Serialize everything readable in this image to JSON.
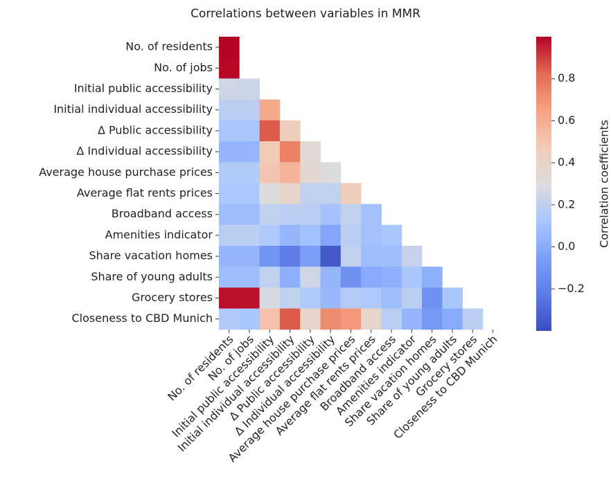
{
  "chart_data": {
    "type": "heatmap",
    "title": "Correlations between variables in MMR",
    "categories": [
      "No. of residents",
      "No. of jobs",
      "Initial public accessibility",
      "Initial individual accessibility",
      "Δ Public accessibility",
      "Δ Individual accessibility",
      "Average house purchase prices",
      "Average flat rents prices",
      "Broadband access",
      "Amenities indicator",
      "Share vacation homes",
      "Share of young adults",
      "Grocery stores",
      "Closeness to CBD Munich"
    ],
    "values": [
      [
        1.0
      ],
      [
        0.99
      ],
      [
        0.25,
        0.24
      ],
      [
        0.18,
        0.18,
        0.62
      ],
      [
        0.12,
        0.12,
        0.85,
        0.45
      ],
      [
        0.05,
        0.05,
        0.47,
        0.75,
        0.33
      ],
      [
        0.15,
        0.15,
        0.5,
        0.58,
        0.35,
        0.3
      ],
      [
        0.13,
        0.13,
        0.3,
        0.38,
        0.2,
        0.2,
        0.45
      ],
      [
        0.08,
        0.08,
        0.2,
        0.18,
        0.18,
        0.1,
        0.2,
        0.1
      ],
      [
        0.18,
        0.18,
        0.14,
        0.05,
        0.1,
        -0.02,
        0.18,
        0.1,
        0.12
      ],
      [
        0.05,
        0.05,
        -0.1,
        -0.22,
        -0.05,
        -0.35,
        0.2,
        0.08,
        0.08,
        0.22
      ],
      [
        0.08,
        0.08,
        0.2,
        0.02,
        0.25,
        0.05,
        -0.12,
        0.0,
        0.02,
        0.12,
        0.02
      ],
      [
        0.98,
        0.98,
        0.28,
        0.2,
        0.14,
        0.06,
        0.16,
        0.14,
        0.08,
        0.18,
        -0.12,
        0.12
      ],
      [
        0.15,
        0.12,
        0.52,
        0.85,
        0.38,
        0.72,
        0.68,
        0.38,
        0.18,
        0.05,
        -0.08,
        0.0,
        0.18
      ]
    ],
    "colorbar_label": "Correlation coefficients",
    "clim": [
      -0.4,
      1.0
    ],
    "cticks": [
      {
        "value": -0.2,
        "label": "−0.2"
      },
      {
        "value": 0,
        "label": "0.0"
      },
      0.2,
      0.4,
      0.6,
      0.8
    ],
    "colormap": [
      "#3b4cc0",
      "#5d7ce6",
      "#7b9ff9",
      "#aac7fd",
      "#dddcdc",
      "#f2cbb7",
      "#f6a283",
      "#e36a53",
      "#b40426"
    ]
  }
}
